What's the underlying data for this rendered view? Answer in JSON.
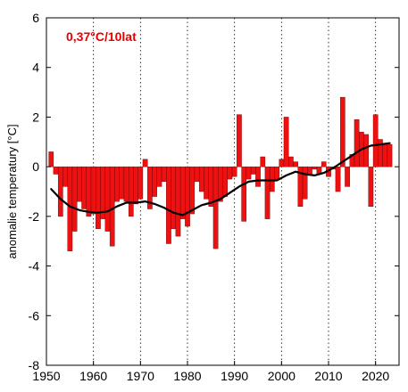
{
  "chart_data": {
    "type": "bar",
    "title": "",
    "xlabel": "",
    "ylabel": "anomalie temperatury [°C]",
    "annotation": "0,37°C/10lat",
    "xlim": [
      1950,
      2025
    ],
    "ylim": [
      -8,
      6
    ],
    "x_ticks": [
      1950,
      1960,
      1970,
      1980,
      1990,
      2000,
      2010,
      2020
    ],
    "y_ticks": [
      -8,
      -6,
      -4,
      -2,
      0,
      2,
      4,
      6
    ],
    "grid": "vertical dotted lines at x ticks",
    "colors": {
      "bars": "#ee1111",
      "bar_edge": "#660000",
      "smooth_line": "#000000",
      "annotation": "#e60000"
    },
    "series": [
      {
        "type": "bar",
        "x": [
          1951,
          1952,
          1953,
          1954,
          1955,
          1956,
          1957,
          1958,
          1959,
          1960,
          1961,
          1962,
          1963,
          1964,
          1965,
          1966,
          1967,
          1968,
          1969,
          1970,
          1971,
          1972,
          1973,
          1974,
          1975,
          1976,
          1977,
          1978,
          1979,
          1980,
          1981,
          1982,
          1983,
          1984,
          1985,
          1986,
          1987,
          1988,
          1989,
          1990,
          1991,
          1992,
          1993,
          1994,
          1995,
          1996,
          1997,
          1998,
          1999,
          2000,
          2001,
          2002,
          2003,
          2004,
          2005,
          2006,
          2007,
          2008,
          2009,
          2010,
          2011,
          2012,
          2013,
          2014,
          2015,
          2016,
          2017,
          2018,
          2019,
          2020,
          2021,
          2022,
          2023
        ],
        "values": [
          0.6,
          -0.3,
          -2.0,
          -0.8,
          -3.4,
          -2.6,
          -1.4,
          -1.7,
          -2.0,
          -1.9,
          -2.5,
          -2.1,
          -2.6,
          -3.2,
          -1.4,
          -1.3,
          -1.4,
          -2.0,
          -1.5,
          -1.3,
          0.3,
          -1.7,
          -1.2,
          -0.8,
          -0.6,
          -3.1,
          -2.5,
          -2.8,
          -2.1,
          -2.4,
          -1.9,
          -0.6,
          -1.0,
          -1.3,
          -1.6,
          -3.3,
          -1.4,
          -1.2,
          -0.5,
          -0.4,
          2.1,
          -2.2,
          -0.5,
          -0.3,
          -0.8,
          0.4,
          -2.1,
          -1.0,
          -0.5,
          0.3,
          2.0,
          0.4,
          0.2,
          -1.6,
          -1.3,
          -0.3,
          -0.1,
          -0.3,
          0.2,
          -0.4,
          -0.1,
          -1.0,
          2.8,
          -0.8,
          0.5,
          1.9,
          1.4,
          1.3,
          -1.6,
          2.1,
          1.1,
          0.9,
          0.9
        ]
      },
      {
        "type": "line",
        "x": [
          1951,
          1953,
          1955,
          1957,
          1959,
          1961,
          1963,
          1965,
          1967,
          1969,
          1971,
          1973,
          1975,
          1977,
          1979,
          1981,
          1983,
          1985,
          1987,
          1989,
          1991,
          1993,
          1995,
          1997,
          1999,
          2001,
          2003,
          2005,
          2007,
          2009,
          2011,
          2013,
          2015,
          2017,
          2019,
          2021,
          2023
        ],
        "values": [
          -0.9,
          -1.3,
          -1.6,
          -1.75,
          -1.82,
          -1.85,
          -1.8,
          -1.6,
          -1.45,
          -1.45,
          -1.4,
          -1.5,
          -1.65,
          -1.85,
          -1.95,
          -1.75,
          -1.55,
          -1.45,
          -1.3,
          -1.05,
          -0.8,
          -0.6,
          -0.55,
          -0.55,
          -0.55,
          -0.35,
          -0.2,
          -0.3,
          -0.35,
          -0.25,
          -0.05,
          0.2,
          0.45,
          0.7,
          0.85,
          0.9,
          0.95
        ]
      }
    ]
  }
}
